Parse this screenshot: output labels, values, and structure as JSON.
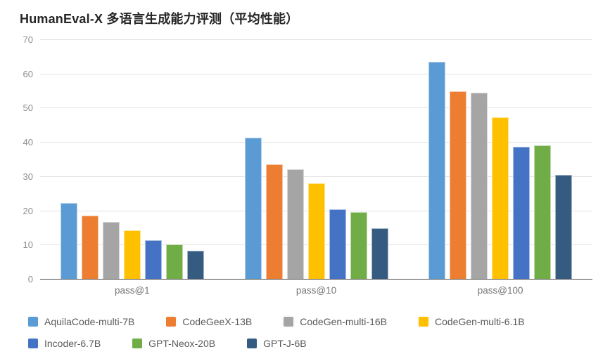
{
  "chart_data": {
    "type": "bar",
    "title": "HumanEval-X 多语言生成能力评测（平均性能）",
    "categories": [
      "pass@1",
      "pass@10",
      "pass@100"
    ],
    "series": [
      {
        "name": "AquilaCode-multi-7B",
        "color": "#5B9BD5",
        "values": [
          22.1,
          41.3,
          63.5
        ]
      },
      {
        "name": "CodeGeeX-13B",
        "color": "#ED7D31",
        "values": [
          18.5,
          33.4,
          54.8
        ]
      },
      {
        "name": "CodeGen-multi-16B",
        "color": "#A5A5A5",
        "values": [
          16.7,
          32.1,
          54.4
        ]
      },
      {
        "name": "CodeGen-multi-6.1B",
        "color": "#FFC000",
        "values": [
          14.2,
          28.0,
          47.3
        ]
      },
      {
        "name": "Incoder-6.7B",
        "color": "#4472C4",
        "values": [
          11.3,
          20.4,
          38.5
        ]
      },
      {
        "name": "GPT-Neox-20B",
        "color": "#70AD47",
        "values": [
          10.0,
          19.6,
          39.1
        ]
      },
      {
        "name": "GPT-J-6B",
        "color": "#355C80",
        "values": [
          8.2,
          14.7,
          30.4
        ]
      }
    ],
    "xlabel": "",
    "ylabel": "",
    "ylim": [
      0,
      70
    ],
    "ytick_interval": 10,
    "grid": "horizontal",
    "legend_position": "bottom",
    "legend_rows": [
      [
        "AquilaCode-multi-7B",
        "CodeGeeX-13B",
        "CodeGen-multi-16B",
        "CodeGen-multi-6.1B"
      ],
      [
        "Incoder-6.7B",
        "GPT-Neox-20B",
        "GPT-J-6B"
      ]
    ],
    "axis_colors": {
      "grid": "#e3e3e3",
      "axis_line": "#4a4a4a",
      "tick_text": "#8e8e8e",
      "category_text": "#757575",
      "legend_text": "#595959",
      "title_text": "#262626",
      "background": "#ffffff"
    }
  }
}
